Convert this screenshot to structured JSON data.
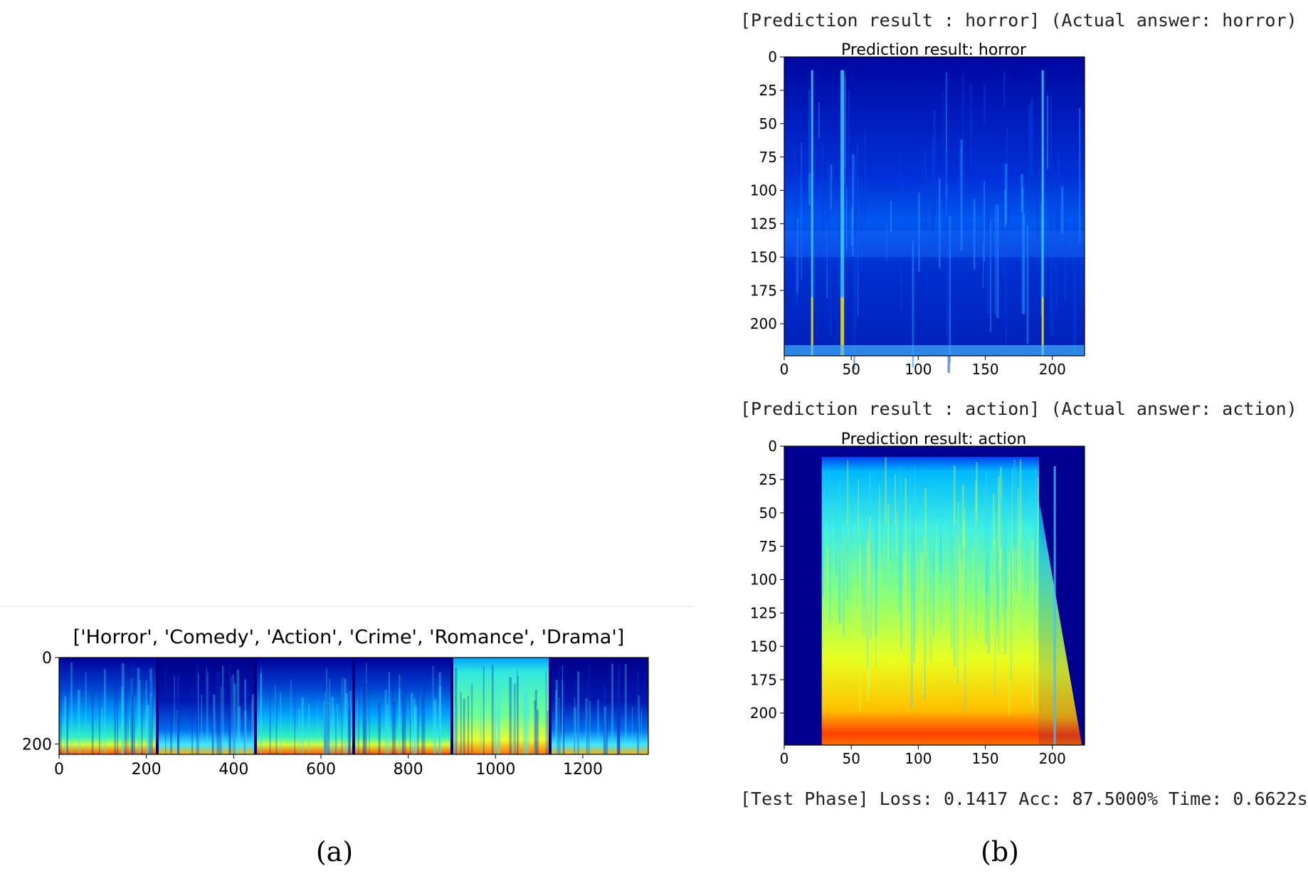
{
  "panel_a": {
    "label": "(a)",
    "chart_data": {
      "type": "heatmap",
      "title": "['Horror', 'Comedy', 'Action', 'Crime', 'Romance', 'Drama']",
      "segments": [
        "Horror",
        "Comedy",
        "Action",
        "Crime",
        "Romance",
        "Drama"
      ],
      "xlim": [
        0,
        1350
      ],
      "ylim": [
        224,
        0
      ],
      "xticks": [
        0,
        200,
        400,
        600,
        800,
        1000,
        1200
      ],
      "yticks": [
        0,
        200
      ],
      "colormap": "jet"
    }
  },
  "panel_b": {
    "label": "(b)",
    "console_lines": [
      "[Prediction result : horror] (Actual answer: horror)",
      "[Prediction result : action] (Actual answer: action)",
      "[Test Phase] Loss: 0.1417 Acc: 87.5000% Time: 0.6622s"
    ],
    "charts": [
      {
        "type": "heatmap",
        "title": "Prediction result: horror",
        "xlim": [
          0,
          224
        ],
        "ylim": [
          224,
          0
        ],
        "xticks": [
          0,
          50,
          100,
          150,
          200
        ],
        "yticks": [
          0,
          25,
          50,
          75,
          100,
          125,
          150,
          175,
          200
        ],
        "colormap": "jet"
      },
      {
        "type": "heatmap",
        "title": "Prediction result: action",
        "xlim": [
          0,
          224
        ],
        "ylim": [
          224,
          0
        ],
        "xticks": [
          0,
          50,
          100,
          150,
          200
        ],
        "yticks": [
          0,
          25,
          50,
          75,
          100,
          125,
          150,
          175,
          200
        ],
        "colormap": "jet"
      }
    ]
  },
  "colors": {
    "jet_low": "#00008f",
    "jet_blue": "#0050ff",
    "jet_cyan": "#00e0ff",
    "jet_green": "#80ff80",
    "jet_yellow": "#ffe000",
    "jet_red": "#ff3000"
  }
}
